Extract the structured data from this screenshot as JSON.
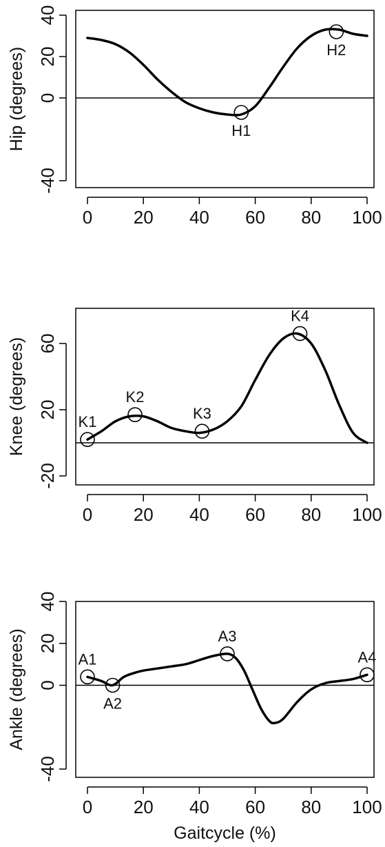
{
  "chart_data": [
    {
      "type": "line",
      "ylabel": "Hip (degrees)",
      "xlabel": "",
      "xlim": [
        0,
        100
      ],
      "ylim": [
        -40,
        40
      ],
      "xticks": [
        0,
        20,
        40,
        60,
        80,
        100
      ],
      "yticks": [
        -40,
        0,
        20,
        40
      ],
      "x": [
        0,
        5,
        10,
        15,
        20,
        25,
        30,
        35,
        40,
        45,
        50,
        55,
        60,
        65,
        70,
        75,
        80,
        85,
        90,
        95,
        100
      ],
      "y": [
        29,
        28,
        26,
        22,
        16,
        9,
        3,
        -2,
        -5,
        -7,
        -8,
        -8,
        -4,
        5,
        15,
        24,
        30,
        33,
        33,
        31,
        30
      ],
      "annotations": [
        {
          "label": "H1",
          "x": 55,
          "y": -7,
          "position": "below"
        },
        {
          "label": "H2",
          "x": 89,
          "y": 32,
          "position": "below"
        }
      ],
      "zero_line": true,
      "grid": false
    },
    {
      "type": "line",
      "ylabel": "Knee (degrees)",
      "xlabel": "",
      "xlim": [
        0,
        100
      ],
      "ylim": [
        -20,
        80
      ],
      "xticks": [
        0,
        20,
        40,
        60,
        80,
        100
      ],
      "yticks": [
        -20,
        20,
        60
      ],
      "x": [
        0,
        5,
        10,
        15,
        20,
        25,
        30,
        35,
        40,
        45,
        50,
        55,
        60,
        65,
        70,
        75,
        80,
        85,
        90,
        95,
        100
      ],
      "y": [
        2,
        7,
        13,
        16,
        16,
        13,
        9,
        7,
        6,
        8,
        13,
        22,
        38,
        53,
        63,
        66,
        60,
        44,
        23,
        6,
        0
      ],
      "annotations": [
        {
          "label": "K1",
          "x": 0,
          "y": 2,
          "position": "above"
        },
        {
          "label": "K2",
          "x": 17,
          "y": 17,
          "position": "above"
        },
        {
          "label": "K3",
          "x": 41,
          "y": 7,
          "position": "above"
        },
        {
          "label": "K4",
          "x": 76,
          "y": 66,
          "position": "above"
        }
      ],
      "zero_line": true,
      "grid": false
    },
    {
      "type": "line",
      "ylabel": "Ankle (degrees)",
      "xlabel": "Gaitcycle (%)",
      "xlim": [
        0,
        100
      ],
      "ylim": [
        -40,
        40
      ],
      "xticks": [
        0,
        20,
        40,
        60,
        80,
        100
      ],
      "yticks": [
        -40,
        0,
        20,
        40
      ],
      "x": [
        0,
        5,
        9,
        13,
        17,
        20,
        25,
        30,
        35,
        40,
        45,
        50,
        53,
        56,
        59,
        62,
        65,
        67,
        70,
        75,
        80,
        85,
        90,
        95,
        100
      ],
      "y": [
        4,
        2,
        0,
        4,
        6,
        7,
        8,
        9,
        10,
        12,
        14,
        15,
        13,
        7,
        -2,
        -11,
        -17,
        -18,
        -16,
        -8,
        -2,
        1,
        2,
        3,
        5
      ],
      "annotations": [
        {
          "label": "A1",
          "x": 0,
          "y": 4,
          "position": "above"
        },
        {
          "label": "A2",
          "x": 9,
          "y": 0,
          "position": "below"
        },
        {
          "label": "A3",
          "x": 50,
          "y": 15,
          "position": "above"
        },
        {
          "label": "A4",
          "x": 100,
          "y": 5,
          "position": "above"
        }
      ],
      "zero_line": true,
      "grid": false
    }
  ]
}
